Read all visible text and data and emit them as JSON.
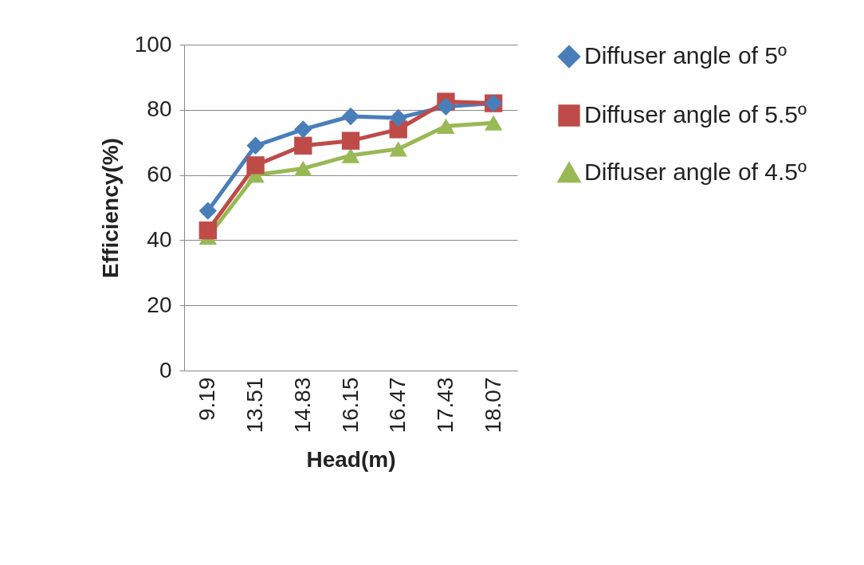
{
  "chart_data": {
    "type": "line",
    "xlabel": "Head(m)",
    "ylabel": "Efficiency(%)",
    "categories": [
      "9.19",
      "13.51",
      "14.83",
      "16.15",
      "16.47",
      "17.43",
      "18.07"
    ],
    "series": [
      {
        "name": "Diffuser angle of 5º",
        "color": "#4a7ebb",
        "marker": "diamond",
        "values": [
          49,
          69,
          74,
          78,
          77.5,
          81,
          82
        ]
      },
      {
        "name": "Diffuser angle of 5.5º",
        "color": "#be4b48",
        "marker": "square",
        "values": [
          43,
          63,
          69,
          70.5,
          74,
          82.5,
          82
        ]
      },
      {
        "name": "Diffuser angle of 4.5º",
        "color": "#98b954",
        "marker": "triangle",
        "values": [
          41,
          60,
          62,
          66,
          68,
          75,
          76
        ]
      }
    ],
    "ylim": [
      0,
      100
    ],
    "yticks": [
      0,
      20,
      40,
      60,
      80,
      100
    ],
    "grid": "y",
    "legend": "right"
  }
}
